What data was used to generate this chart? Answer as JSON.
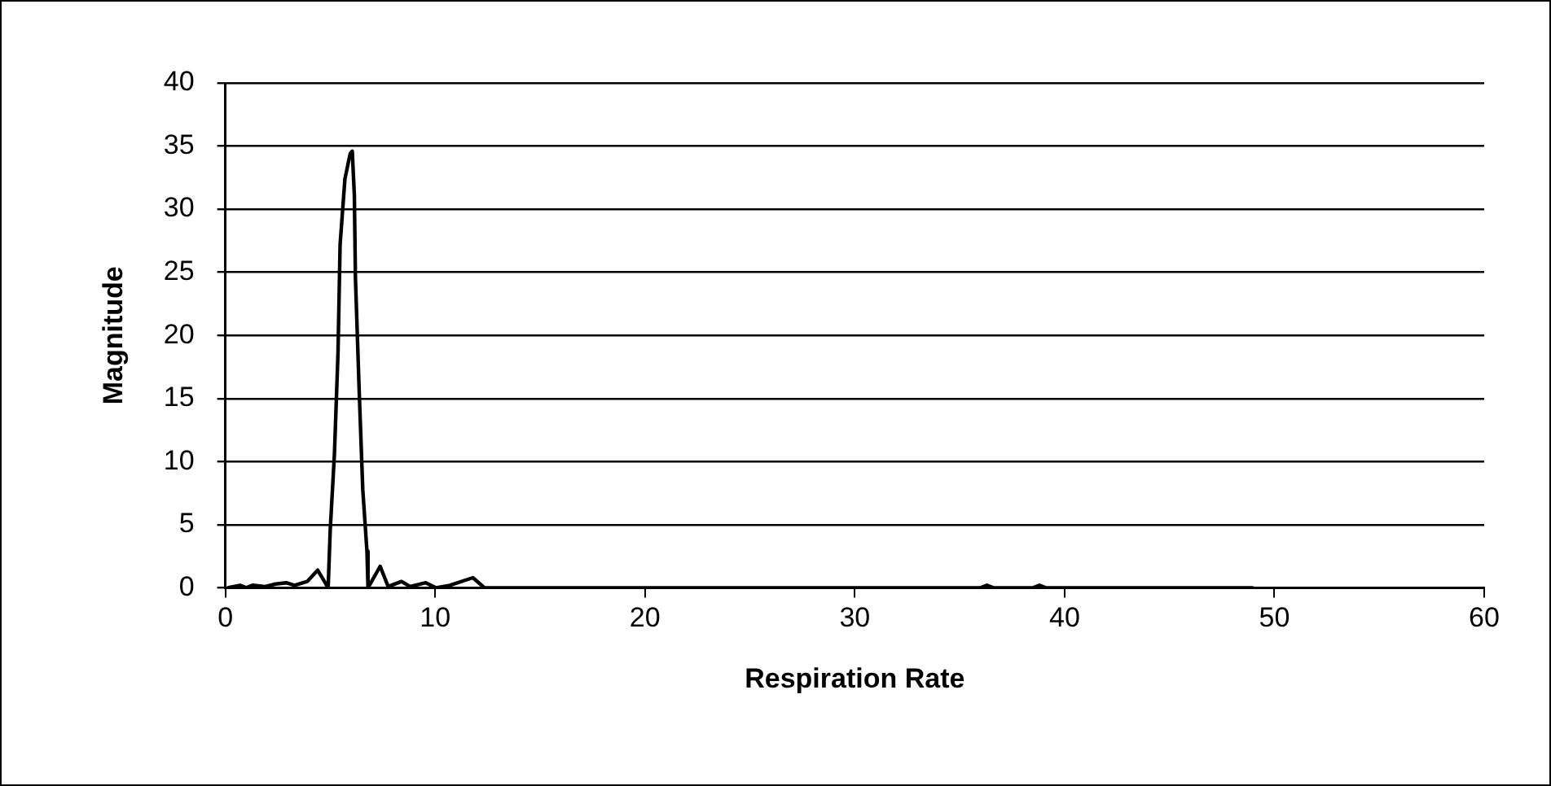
{
  "chart_data": {
    "type": "line",
    "xlabel": "Respiration Rate",
    "ylabel": "Magnitude",
    "xlim": [
      0,
      60
    ],
    "xticks": [
      0,
      10,
      20,
      30,
      40,
      50,
      60
    ],
    "ylim": [
      0,
      40
    ],
    "yticks": [
      0,
      5,
      10,
      15,
      20,
      25,
      30,
      35,
      40
    ],
    "grid": "y",
    "legend": false,
    "marker": "none",
    "line_style": "solid",
    "series": [
      {
        "color": "#000000",
        "x": [
          0.1,
          0.7,
          1.0,
          1.3,
          1.9,
          2.4,
          2.9,
          3.3,
          3.9,
          4.4,
          4.9,
          5.0,
          5.2,
          5.37,
          5.47,
          5.7,
          5.95,
          6.05,
          6.15,
          6.2,
          6.38,
          6.55,
          6.75,
          6.8,
          7.38,
          7.76,
          8.4,
          8.8,
          9.55,
          10.05,
          10.7,
          11.8,
          12.35,
          20,
          36,
          36.3,
          36.6,
          38.5,
          38.8,
          39.1,
          49
        ],
        "values": [
          0.0,
          0.2,
          0.0,
          0.2,
          0.1,
          0.3,
          0.4,
          0.2,
          0.5,
          1.4,
          0.0,
          4.6,
          10.6,
          18.6,
          27.2,
          32.4,
          34.4,
          34.6,
          31.1,
          24.6,
          15.6,
          7.8,
          2.9,
          0.0,
          1.7,
          0.1,
          0.5,
          0.1,
          0.4,
          0.0,
          0.2,
          0.8,
          0.0,
          0.0,
          0.0,
          0.2,
          0.0,
          0.0,
          0.2,
          0.0,
          0.0
        ]
      }
    ]
  }
}
